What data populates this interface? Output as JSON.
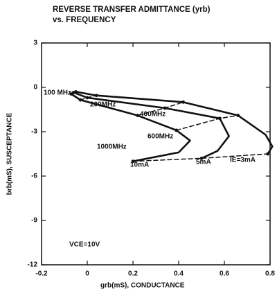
{
  "chart_data": {
    "type": "line",
    "title": "REVERSE TRANSFER ADMITTANCE (yrb)",
    "subtitle": "vs. FREQUENCY",
    "xlabel": "grb(mS), CONDUCTANCE",
    "ylabel": "brb(mS), SUSCEPTANCE",
    "annotation": "VCE=10V",
    "xlim": [
      -0.2,
      0.8
    ],
    "xticks": [
      -0.2,
      0,
      0.2,
      0.4,
      0.6,
      0.8
    ],
    "ylim": [
      -12,
      3
    ],
    "yticks": [
      3,
      0,
      -3,
      -6,
      -9,
      -12
    ],
    "color": "#111111",
    "series": [
      {
        "name": "10mA",
        "style": "solid",
        "x": [
          -0.07,
          -0.03,
          0.22,
          0.39,
          0.45,
          0.4,
          0.2
        ],
        "y": [
          -0.45,
          -0.85,
          -1.9,
          -2.9,
          -3.6,
          -4.4,
          -5.0
        ]
      },
      {
        "name": "5mA",
        "style": "solid",
        "x": [
          -0.06,
          0.0,
          0.34,
          0.58,
          0.62,
          0.57,
          0.5
        ],
        "y": [
          -0.35,
          -0.7,
          -1.4,
          -2.1,
          -3.3,
          -4.3,
          -4.8
        ]
      },
      {
        "name": "IE=3mA",
        "style": "solid",
        "x": [
          -0.05,
          0.04,
          0.42,
          0.66,
          0.78,
          0.81,
          0.79
        ],
        "y": [
          -0.3,
          -0.55,
          -1.0,
          -1.9,
          -3.2,
          -4.0,
          -4.5
        ]
      },
      {
        "name": "100 MHz",
        "style": "dashed",
        "x": [
          -0.07,
          -0.06,
          -0.05
        ],
        "y": [
          -0.45,
          -0.35,
          -0.3
        ]
      },
      {
        "name": "200MHz",
        "style": "dashed",
        "x": [
          -0.03,
          0.0,
          0.04
        ],
        "y": [
          -0.85,
          -0.7,
          -0.55
        ]
      },
      {
        "name": "400MHz",
        "style": "dashed",
        "x": [
          0.22,
          0.34,
          0.42
        ],
        "y": [
          -1.9,
          -1.4,
          -1.0
        ]
      },
      {
        "name": "600MHz",
        "style": "dashed",
        "x": [
          0.39,
          0.58,
          0.66
        ],
        "y": [
          -2.9,
          -2.1,
          -1.9
        ]
      },
      {
        "name": "1000MHz",
        "style": "dashed",
        "x": [
          0.2,
          0.5,
          0.79
        ],
        "y": [
          -5.0,
          -4.8,
          -4.5
        ]
      }
    ]
  }
}
